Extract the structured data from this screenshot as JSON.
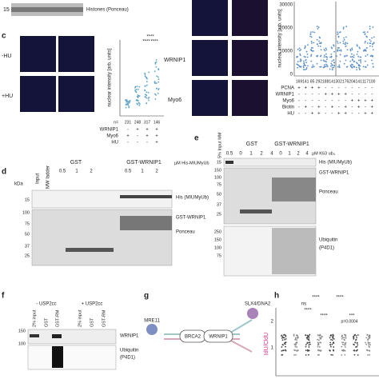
{
  "top_left": {
    "marker": "15",
    "label": "Histones (Ponceau)"
  },
  "panel_b": {
    "rows": [
      "WRNIP1",
      "Myo6"
    ],
    "y_axis_label": "nuclear intensity [arb. units]",
    "yticks": [
      "30000",
      "20000",
      "10000",
      "0"
    ],
    "n": [
      "169",
      "141",
      "85",
      "292",
      "188",
      "141",
      "302",
      "176",
      "204",
      "141",
      "117",
      "100"
    ],
    "conditions": [
      {
        "name": "PCNA",
        "signs": [
          "+",
          "+",
          "+",
          "+",
          "-",
          "-",
          "-",
          "-",
          "-",
          "-",
          "-",
          "-"
        ]
      },
      {
        "name": "WRNIP1",
        "signs": [
          "-",
          "-",
          "-",
          "-",
          "+",
          "+",
          "+",
          "+",
          "-",
          "-",
          "-",
          "-"
        ]
      },
      {
        "name": "Myo6",
        "signs": [
          "-",
          "-",
          "-",
          "-",
          "-",
          "-",
          "-",
          "-",
          "+",
          "+",
          "+",
          "+"
        ]
      },
      {
        "name": "Biotin",
        "signs": [
          "-",
          "+",
          "-",
          "+",
          "-",
          "+",
          "-",
          "+",
          "-",
          "+",
          "-",
          "+"
        ]
      },
      {
        "name": "HU",
        "signs": [
          "-",
          "-",
          "+",
          "+",
          "-",
          "-",
          "+",
          "+",
          "-",
          "-",
          "+",
          "+"
        ]
      }
    ]
  },
  "panel_c": {
    "letter": "c",
    "rows": [
      "-HU",
      "+HU"
    ],
    "y_axis_label": "nuclear intensity [arb. units]",
    "significance": [
      "****",
      "****",
      "****"
    ],
    "n_label": "n=",
    "n": [
      "231",
      "248",
      "317",
      "146"
    ],
    "conditions": [
      {
        "name": "WRNIP1",
        "signs": [
          "-",
          "+",
          "+",
          "+"
        ]
      },
      {
        "name": "Myo6",
        "signs": [
          "+",
          "-",
          "+",
          "+"
        ]
      },
      {
        "name": "HU",
        "signs": [
          "-",
          "-",
          "-",
          "+"
        ]
      }
    ]
  },
  "panel_d": {
    "letter": "d",
    "kda": "kDa",
    "lanes": [
      "Input",
      "MW ladder"
    ],
    "groups": [
      "GST",
      "GST-WRNIP1"
    ],
    "concentrations": [
      "0.5",
      "1",
      "2",
      "0.5",
      "1",
      "2"
    ],
    "unit": "µM His-MIUMyUb",
    "markers": [
      "15",
      "100",
      "75",
      "50",
      "37",
      "25"
    ],
    "bands": [
      "His (MIUMyUb)",
      "GST-WRNIP1",
      "Ponceau"
    ]
  },
  "panel_e": {
    "letter": "e",
    "input_lane": "5% Input MM",
    "groups": [
      "GST",
      "GST-WRNIP1"
    ],
    "concentrations": [
      "0.5",
      "0",
      "1",
      "2",
      "4",
      "0",
      "1",
      "2",
      "4"
    ],
    "unit": "µM K63 ub₄",
    "markers": [
      "15",
      "150",
      "100",
      "75",
      "50",
      "37",
      "25",
      "250",
      "150",
      "100",
      "75"
    ],
    "bands": [
      "His (MIUMyUb)",
      "GST-WRNIP1",
      "Ponceau",
      "Ubiquitin",
      "(P4D1)"
    ]
  },
  "panel_f": {
    "letter": "f",
    "groups": [
      "- USP2cc",
      "+ USP2cc"
    ],
    "lanes": [
      "2% input",
      "GST",
      "GST-RM",
      "2% input",
      "GST",
      "GST-RM"
    ],
    "markers": [
      "150",
      "100"
    ],
    "bands": [
      "WRNIP1",
      "Ubiquitin",
      "(P4D1)"
    ]
  },
  "panel_g": {
    "letter": "g",
    "nodes": [
      "MRE11",
      "BRCA2",
      "WRNIP1",
      "SLX4/DNA2"
    ]
  },
  "panel_h": {
    "letter": "h",
    "y_axis_label": "IdU/CldU",
    "yticks": [
      "2",
      "1"
    ],
    "significance": [
      "****",
      "ns",
      "****",
      "****",
      "****",
      "***"
    ],
    "p_value": "p=0.0004"
  }
}
